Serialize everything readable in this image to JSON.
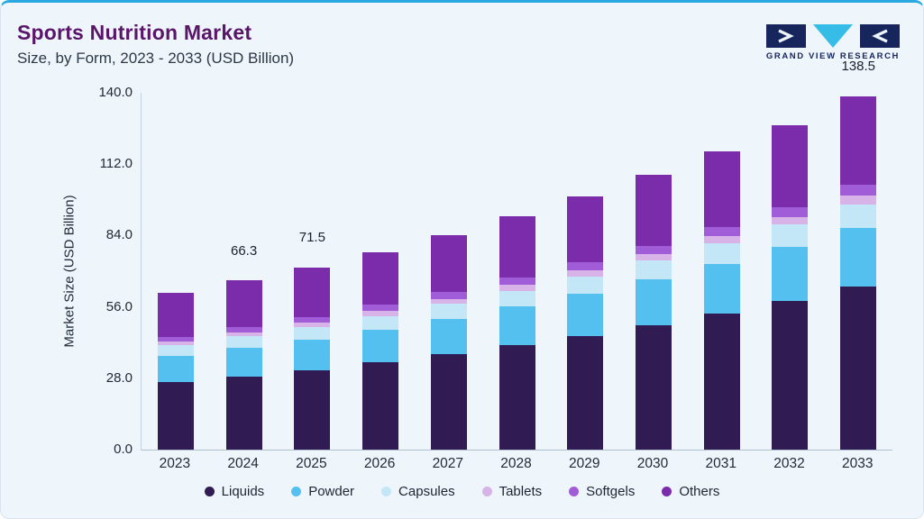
{
  "header": {
    "title": "Sports Nutrition Market",
    "subtitle": "Size, by Form, 2023 - 2033 (USD Billion)",
    "logo_text": "GRAND VIEW RESEARCH"
  },
  "colors": {
    "top_accent": "#2aa9e0",
    "title": "#5a1669",
    "background": "#eef5fb",
    "logo_navy": "#16265c",
    "logo_cyan": "#35bde8"
  },
  "chart_data": {
    "type": "bar",
    "stacked": true,
    "title": "Sports Nutrition Market",
    "subtitle": "Size, by Form, 2023 - 2033 (USD Billion)",
    "xlabel": "",
    "ylabel": "Market Size (USD Billion)",
    "ylim": [
      0,
      140
    ],
    "grid": false,
    "legend_position": "bottom",
    "yticks": [
      {
        "v": 0,
        "label": "0.0"
      },
      {
        "v": 28,
        "label": "28.0"
      },
      {
        "v": 56,
        "label": "56.0"
      },
      {
        "v": 84,
        "label": "84.0"
      },
      {
        "v": 112,
        "label": "112.0"
      },
      {
        "v": 140,
        "label": "140.0"
      }
    ],
    "categories": [
      "2023",
      "2024",
      "2025",
      "2026",
      "2027",
      "2028",
      "2029",
      "2030",
      "2031",
      "2032",
      "2033"
    ],
    "series": [
      {
        "name": "Liquids",
        "color": "#301b52",
        "values": [
          26.4,
          28.8,
          31.3,
          34.2,
          37.4,
          40.9,
          44.7,
          48.9,
          53.5,
          58.5,
          64.0
        ]
      },
      {
        "name": "Powder",
        "color": "#53c0f0",
        "values": [
          10.2,
          11.0,
          11.9,
          12.9,
          14.0,
          15.2,
          16.5,
          17.9,
          19.4,
          21.1,
          22.9
        ]
      },
      {
        "name": "Capsules",
        "color": "#c3e7f7",
        "values": [
          4.3,
          4.6,
          5.0,
          5.4,
          5.8,
          6.3,
          6.8,
          7.4,
          8.0,
          8.7,
          9.4
        ]
      },
      {
        "name": "Tablets",
        "color": "#d7b3e8",
        "values": [
          1.5,
          1.6,
          1.7,
          1.9,
          2.0,
          2.2,
          2.4,
          2.6,
          2.8,
          3.0,
          3.3
        ]
      },
      {
        "name": "Softgels",
        "color": "#a15cd8",
        "values": [
          1.9,
          2.0,
          2.2,
          2.4,
          2.6,
          2.8,
          3.0,
          3.3,
          3.6,
          3.9,
          4.2
        ]
      },
      {
        "name": "Others",
        "color": "#7b2cab",
        "values": [
          17.2,
          18.3,
          19.4,
          20.8,
          22.5,
          24.1,
          26.0,
          27.8,
          29.9,
          32.1,
          34.7
        ]
      }
    ],
    "totals": [
      61.5,
      66.3,
      71.5,
      77.6,
      84.3,
      91.5,
      99.4,
      107.9,
      117.2,
      127.3,
      138.5
    ],
    "total_labels": [
      "",
      "66.3",
      "71.5",
      "",
      "",
      "",
      "",
      "",
      "",
      "",
      "138.5"
    ]
  }
}
